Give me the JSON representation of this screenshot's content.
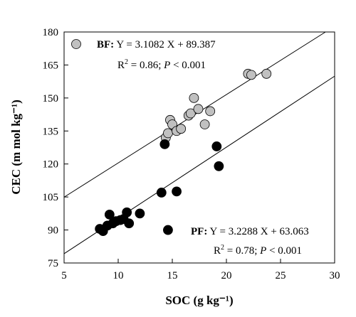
{
  "chart_data": {
    "type": "scatter",
    "xlabel": "SOC (g kg⁻¹)",
    "ylabel": "CEC (m mol kg⁻¹)",
    "xlim": [
      5,
      30
    ],
    "ylim": [
      75,
      180
    ],
    "xticks": [
      5,
      10,
      15,
      20,
      25,
      30
    ],
    "yticks": [
      75,
      90,
      105,
      120,
      135,
      150,
      165,
      180
    ],
    "series": [
      {
        "name": "BF",
        "marker_color": "#c0c0c0",
        "equation": "Y = 3.1082 X + 89.387",
        "stats": {
          "r2_label": "R",
          "r2_exp": "2",
          "r2_value": " = 0.86; ",
          "p_label": "P",
          "p_value": " < 0.001"
        },
        "fit": {
          "slope": 3.1082,
          "intercept": 89.387
        },
        "points": [
          [
            14.4,
            132
          ],
          [
            14.6,
            134
          ],
          [
            14.8,
            140
          ],
          [
            15.0,
            138
          ],
          [
            15.4,
            135
          ],
          [
            15.8,
            136
          ],
          [
            16.5,
            142
          ],
          [
            16.7,
            143
          ],
          [
            17.0,
            150
          ],
          [
            17.4,
            145
          ],
          [
            18.0,
            138
          ],
          [
            18.5,
            144
          ],
          [
            22.0,
            161
          ],
          [
            22.3,
            160.5
          ],
          [
            23.7,
            161
          ]
        ]
      },
      {
        "name": "PF",
        "marker_color": "#000000",
        "equation": "Y = 3.2288 X + 63.063",
        "stats": {
          "r2_label": "R",
          "r2_exp": "2",
          "r2_value": " = 0.78; ",
          "p_label": "P",
          "p_value": " < 0.001"
        },
        "fit": {
          "slope": 3.2288,
          "intercept": 63.063
        },
        "points": [
          [
            8.3,
            90.5
          ],
          [
            8.6,
            89.5
          ],
          [
            9.0,
            92
          ],
          [
            9.2,
            97
          ],
          [
            9.5,
            93
          ],
          [
            9.8,
            94
          ],
          [
            10.2,
            94.5
          ],
          [
            10.5,
            95
          ],
          [
            10.8,
            98
          ],
          [
            11.0,
            93
          ],
          [
            12.0,
            97.5
          ],
          [
            14.0,
            107
          ],
          [
            14.3,
            129
          ],
          [
            14.6,
            90
          ],
          [
            15.4,
            107.5
          ],
          [
            19.1,
            128
          ],
          [
            19.3,
            119
          ]
        ]
      }
    ],
    "legend_marker": "BF"
  }
}
